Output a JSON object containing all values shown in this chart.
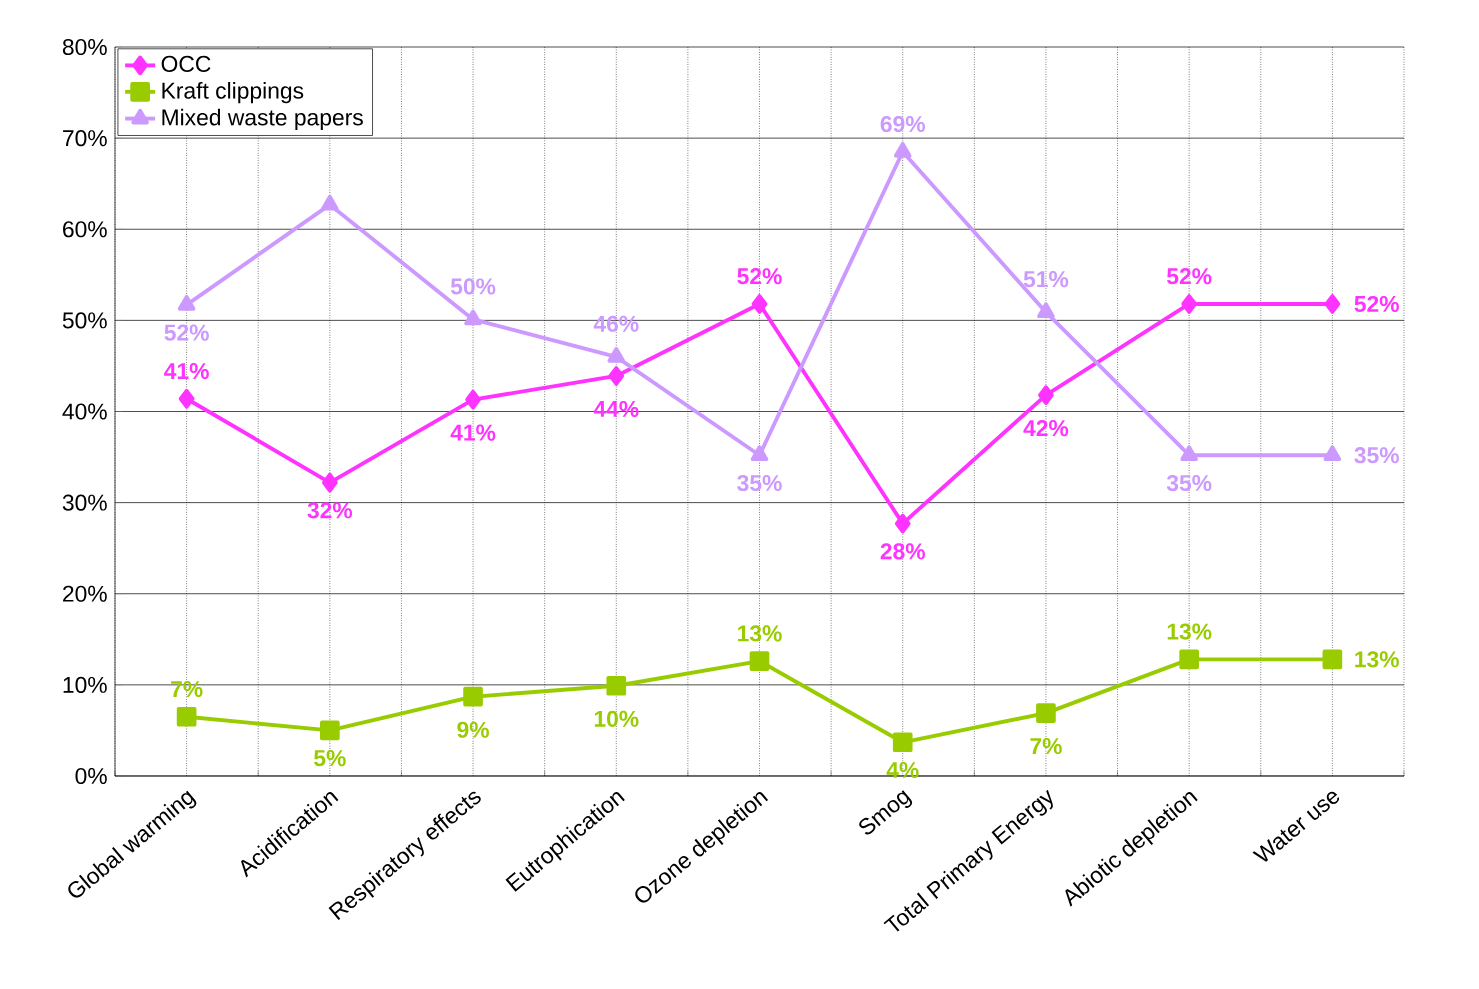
{
  "chart_data": {
    "type": "line",
    "categories": [
      "Global warming",
      "Acidification",
      "Respiratory effects",
      "Eutrophication",
      "Ozone depletion",
      "Smog",
      "Total Primary Energy",
      "Abiotic depletion",
      "Water use"
    ],
    "series": [
      {
        "name": "OCC",
        "color": "#ff33ff",
        "marker": "diamond",
        "values": [
          41.4,
          32.2,
          41.3,
          43.9,
          51.8,
          27.7,
          41.8,
          51.8,
          51.8
        ],
        "value_labels": [
          "41%",
          "32%",
          "41%",
          "44%",
          "52%",
          "28%",
          "42%",
          "52%",
          "52%"
        ]
      },
      {
        "name": "Kraft clippings",
        "color": "#99cc00",
        "marker": "square",
        "values": [
          6.5,
          5.0,
          8.7,
          9.9,
          12.6,
          3.7,
          6.9,
          12.8,
          12.8
        ],
        "value_labels": [
          "7%",
          "5%",
          "9%",
          "10%",
          "13%",
          "4%",
          "7%",
          "13%",
          "13%"
        ]
      },
      {
        "name": "Mixed waste papers",
        "color": "#cc99ff",
        "marker": "triangle",
        "values": [
          51.7,
          62.7,
          50.1,
          46.0,
          35.2,
          68.5,
          50.9,
          35.2,
          35.2
        ],
        "value_labels": [
          "52%",
          null,
          "50%",
          "46%",
          "35%",
          "69%",
          "51%",
          "35%",
          "35%"
        ]
      }
    ],
    "ylim": [
      0,
      80
    ],
    "yticks": [
      {
        "value": 0,
        "label": "0%"
      },
      {
        "value": 10,
        "label": "10%"
      },
      {
        "value": 20,
        "label": "20%"
      },
      {
        "value": 30,
        "label": "30%"
      },
      {
        "value": 40,
        "label": "40%"
      },
      {
        "value": 50,
        "label": "50%"
      },
      {
        "value": 60,
        "label": "60%"
      },
      {
        "value": 70,
        "label": "70%"
      },
      {
        "value": 80,
        "label": "80%"
      }
    ],
    "grid": true,
    "legend": "top left",
    "line_style": "solid"
  }
}
